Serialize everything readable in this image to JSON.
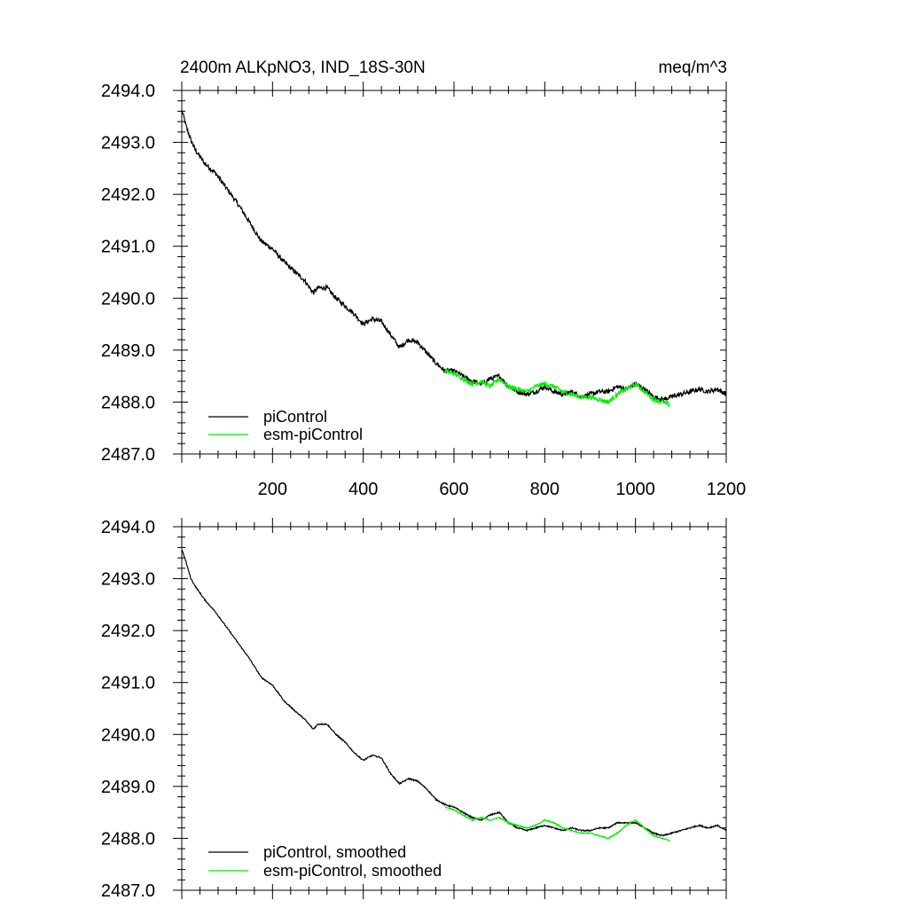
{
  "colors": {
    "piControl": "#000000",
    "esm_piControl": "#00ee00",
    "axes": "#000000",
    "background": "#ffffff"
  },
  "chart_data": [
    {
      "type": "line",
      "title": "2400m ALKpNO3, IND_18S-30N",
      "units": "meq/m^3",
      "xlim": [
        0,
        1200
      ],
      "ylim": [
        2487.0,
        2494.0
      ],
      "xticks": [
        200,
        400,
        600,
        800,
        1000,
        1200
      ],
      "xtick_labels": [
        "200",
        "400",
        "600",
        "800",
        "1000",
        "1200"
      ],
      "yticks": [
        2487.0,
        2488.0,
        2489.0,
        2490.0,
        2491.0,
        2492.0,
        2493.0,
        2494.0
      ],
      "ytick_labels": [
        "2487.0",
        "2488.0",
        "2489.0",
        "2490.0",
        "2491.0",
        "2492.0",
        "2493.0",
        "2494.0"
      ],
      "legend_position": "bottom-left",
      "series": [
        {
          "name": "piControl",
          "color": "#000000",
          "x": [
            1,
            10,
            20,
            30,
            50,
            75,
            100,
            125,
            150,
            175,
            200,
            225,
            250,
            270,
            290,
            300,
            320,
            340,
            360,
            380,
            400,
            420,
            440,
            460,
            480,
            500,
            520,
            540,
            560,
            580,
            600,
            620,
            640,
            660,
            680,
            700,
            720,
            740,
            760,
            780,
            800,
            820,
            840,
            860,
            880,
            900,
            920,
            940,
            960,
            980,
            1000,
            1020,
            1040,
            1060,
            1080,
            1100,
            1120,
            1140,
            1160,
            1180,
            1200
          ],
          "values": [
            2493.6,
            2493.3,
            2493.05,
            2492.85,
            2492.6,
            2492.4,
            2492.1,
            2491.8,
            2491.45,
            2491.1,
            2490.95,
            2490.7,
            2490.5,
            2490.35,
            2490.1,
            2490.2,
            2490.2,
            2490.0,
            2489.85,
            2489.7,
            2489.5,
            2489.6,
            2489.55,
            2489.3,
            2489.05,
            2489.2,
            2489.15,
            2488.95,
            2488.75,
            2488.6,
            2488.6,
            2488.5,
            2488.4,
            2488.35,
            2488.45,
            2488.5,
            2488.3,
            2488.2,
            2488.15,
            2488.2,
            2488.3,
            2488.2,
            2488.15,
            2488.2,
            2488.1,
            2488.15,
            2488.2,
            2488.2,
            2488.3,
            2488.25,
            2488.35,
            2488.25,
            2488.1,
            2488.05,
            2488.1,
            2488.15,
            2488.2,
            2488.25,
            2488.2,
            2488.25,
            2488.15
          ]
        },
        {
          "name": "esm-piControl",
          "color": "#00ee00",
          "x": [
            580,
            600,
            620,
            640,
            660,
            680,
            700,
            720,
            740,
            760,
            780,
            800,
            820,
            840,
            860,
            880,
            900,
            920,
            940,
            960,
            980,
            1000,
            1020,
            1040,
            1060,
            1075
          ],
          "values": [
            2488.6,
            2488.55,
            2488.45,
            2488.35,
            2488.4,
            2488.3,
            2488.45,
            2488.3,
            2488.25,
            2488.2,
            2488.3,
            2488.35,
            2488.3,
            2488.2,
            2488.15,
            2488.1,
            2488.1,
            2488.05,
            2488.0,
            2488.15,
            2488.25,
            2488.35,
            2488.2,
            2488.05,
            2488.0,
            2487.95
          ]
        }
      ]
    },
    {
      "type": "line",
      "xlim": [
        0,
        1200
      ],
      "ylim": [
        2487.0,
        2494.0
      ],
      "yticks": [
        2487.0,
        2488.0,
        2489.0,
        2490.0,
        2491.0,
        2492.0,
        2493.0,
        2494.0
      ],
      "ytick_labels": [
        "2487.0",
        "2488.0",
        "2489.0",
        "2490.0",
        "2491.0",
        "2492.0",
        "2493.0",
        "2494.0"
      ],
      "legend_position": "bottom-left",
      "series": [
        {
          "name": "piControl, smoothed",
          "color": "#000000",
          "x": [
            1,
            10,
            20,
            30,
            50,
            75,
            100,
            125,
            150,
            175,
            200,
            225,
            250,
            270,
            290,
            300,
            320,
            340,
            360,
            380,
            400,
            420,
            440,
            460,
            480,
            500,
            520,
            540,
            560,
            580,
            600,
            620,
            640,
            660,
            680,
            700,
            720,
            740,
            760,
            780,
            800,
            820,
            840,
            860,
            880,
            900,
            920,
            940,
            960,
            980,
            1000,
            1020,
            1040,
            1060,
            1080,
            1100,
            1120,
            1140,
            1160,
            1180,
            1200
          ],
          "values": [
            2493.55,
            2493.3,
            2493.0,
            2492.85,
            2492.6,
            2492.35,
            2492.05,
            2491.75,
            2491.45,
            2491.1,
            2490.95,
            2490.65,
            2490.45,
            2490.3,
            2490.1,
            2490.2,
            2490.2,
            2490.0,
            2489.85,
            2489.65,
            2489.5,
            2489.6,
            2489.55,
            2489.25,
            2489.05,
            2489.15,
            2489.1,
            2488.95,
            2488.75,
            2488.65,
            2488.6,
            2488.5,
            2488.4,
            2488.35,
            2488.45,
            2488.5,
            2488.3,
            2488.2,
            2488.15,
            2488.2,
            2488.25,
            2488.2,
            2488.15,
            2488.2,
            2488.15,
            2488.15,
            2488.2,
            2488.2,
            2488.3,
            2488.3,
            2488.3,
            2488.2,
            2488.1,
            2488.05,
            2488.1,
            2488.15,
            2488.2,
            2488.25,
            2488.2,
            2488.25,
            2488.15
          ]
        },
        {
          "name": "esm-piControl, smoothed",
          "color": "#00ee00",
          "x": [
            580,
            600,
            620,
            640,
            660,
            680,
            700,
            720,
            740,
            760,
            780,
            800,
            820,
            840,
            860,
            880,
            900,
            920,
            940,
            960,
            980,
            1000,
            1020,
            1040,
            1060,
            1075
          ],
          "values": [
            2488.6,
            2488.55,
            2488.45,
            2488.35,
            2488.4,
            2488.35,
            2488.4,
            2488.3,
            2488.25,
            2488.2,
            2488.25,
            2488.35,
            2488.3,
            2488.2,
            2488.15,
            2488.1,
            2488.1,
            2488.05,
            2488.0,
            2488.1,
            2488.25,
            2488.35,
            2488.2,
            2488.05,
            2488.0,
            2487.95
          ]
        }
      ]
    }
  ]
}
